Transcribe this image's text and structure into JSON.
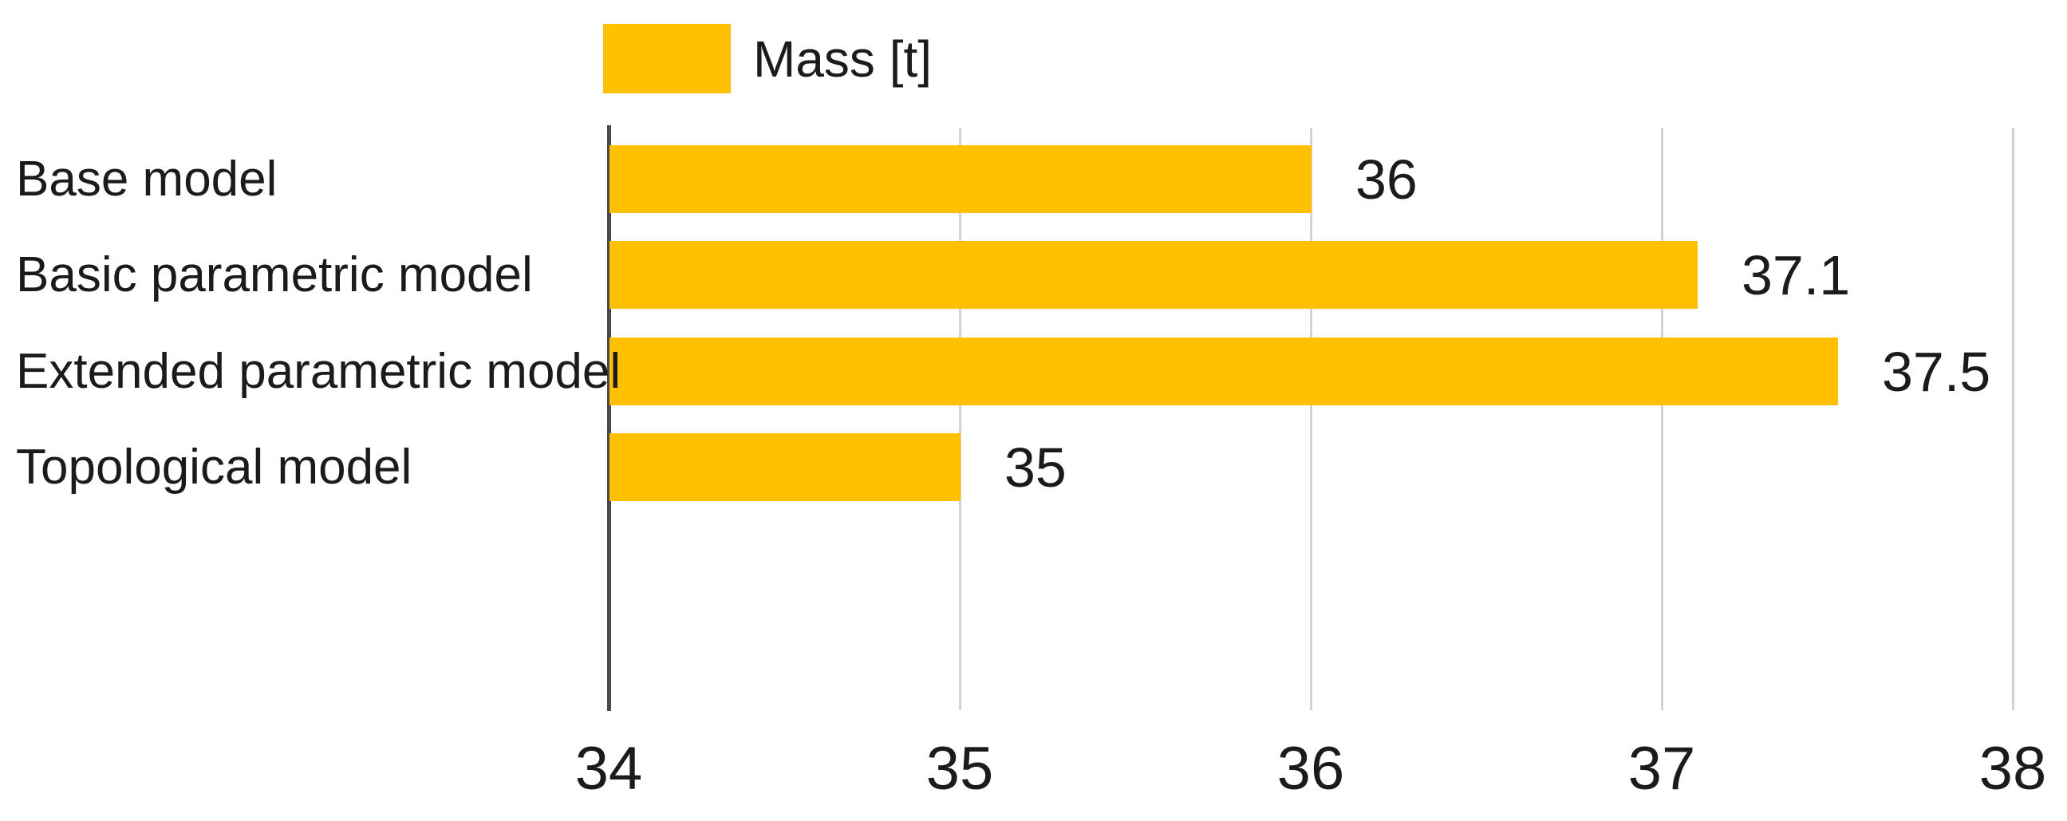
{
  "legend": {
    "label": "Mass [t]",
    "swatch_color": "#FFC000"
  },
  "chart_data": {
    "type": "bar",
    "orientation": "horizontal",
    "title": "",
    "series_name": "Mass [t]",
    "categories": [
      "Base model",
      "Basic parametric model",
      "Extended parametric model",
      "Topological model"
    ],
    "values": [
      36,
      37.1,
      37.5,
      35
    ],
    "data_labels": [
      "36",
      "37.1",
      "37.5",
      "35"
    ],
    "xlim": [
      34,
      38
    ],
    "x_ticks": [
      34,
      35,
      36,
      37,
      38
    ],
    "grid": true,
    "legend_position": "top",
    "bar_color": "#FFC000",
    "axis_line_color": "#4a4a4a",
    "gridline_color": "#d2d2d2",
    "text_color": "#1b1b1b"
  }
}
